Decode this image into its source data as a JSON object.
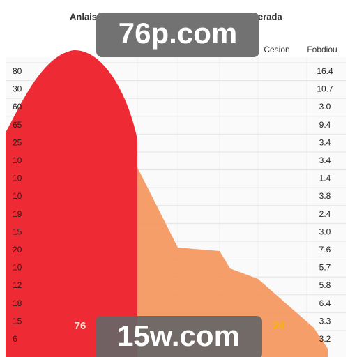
{
  "header": {
    "title_left": "Anlais",
    "title_right": "erada",
    "columns": [
      "Cesion",
      "Fobdiou"
    ]
  },
  "rows": [
    [
      "80",
      "16.4"
    ],
    [
      "30",
      "10.7"
    ],
    [
      "60",
      "3.0"
    ],
    [
      "65",
      "9.4"
    ],
    [
      "25",
      "3.4"
    ],
    [
      "10",
      "3.4"
    ],
    [
      "10",
      "1.4"
    ],
    [
      "10",
      "3.8"
    ],
    [
      "19",
      "2.4"
    ],
    [
      "15",
      "3.0"
    ],
    [
      "20",
      "7.6"
    ],
    [
      "10",
      "5.7"
    ],
    [
      "12",
      "5.8"
    ],
    [
      "18",
      "6.4"
    ],
    [
      "15",
      "3.3"
    ],
    [
      "6",
      "3.2"
    ]
  ],
  "labels": {
    "left": "76",
    "right": "24"
  },
  "watermarks": [
    "76p.com",
    "15w.com"
  ]
}
